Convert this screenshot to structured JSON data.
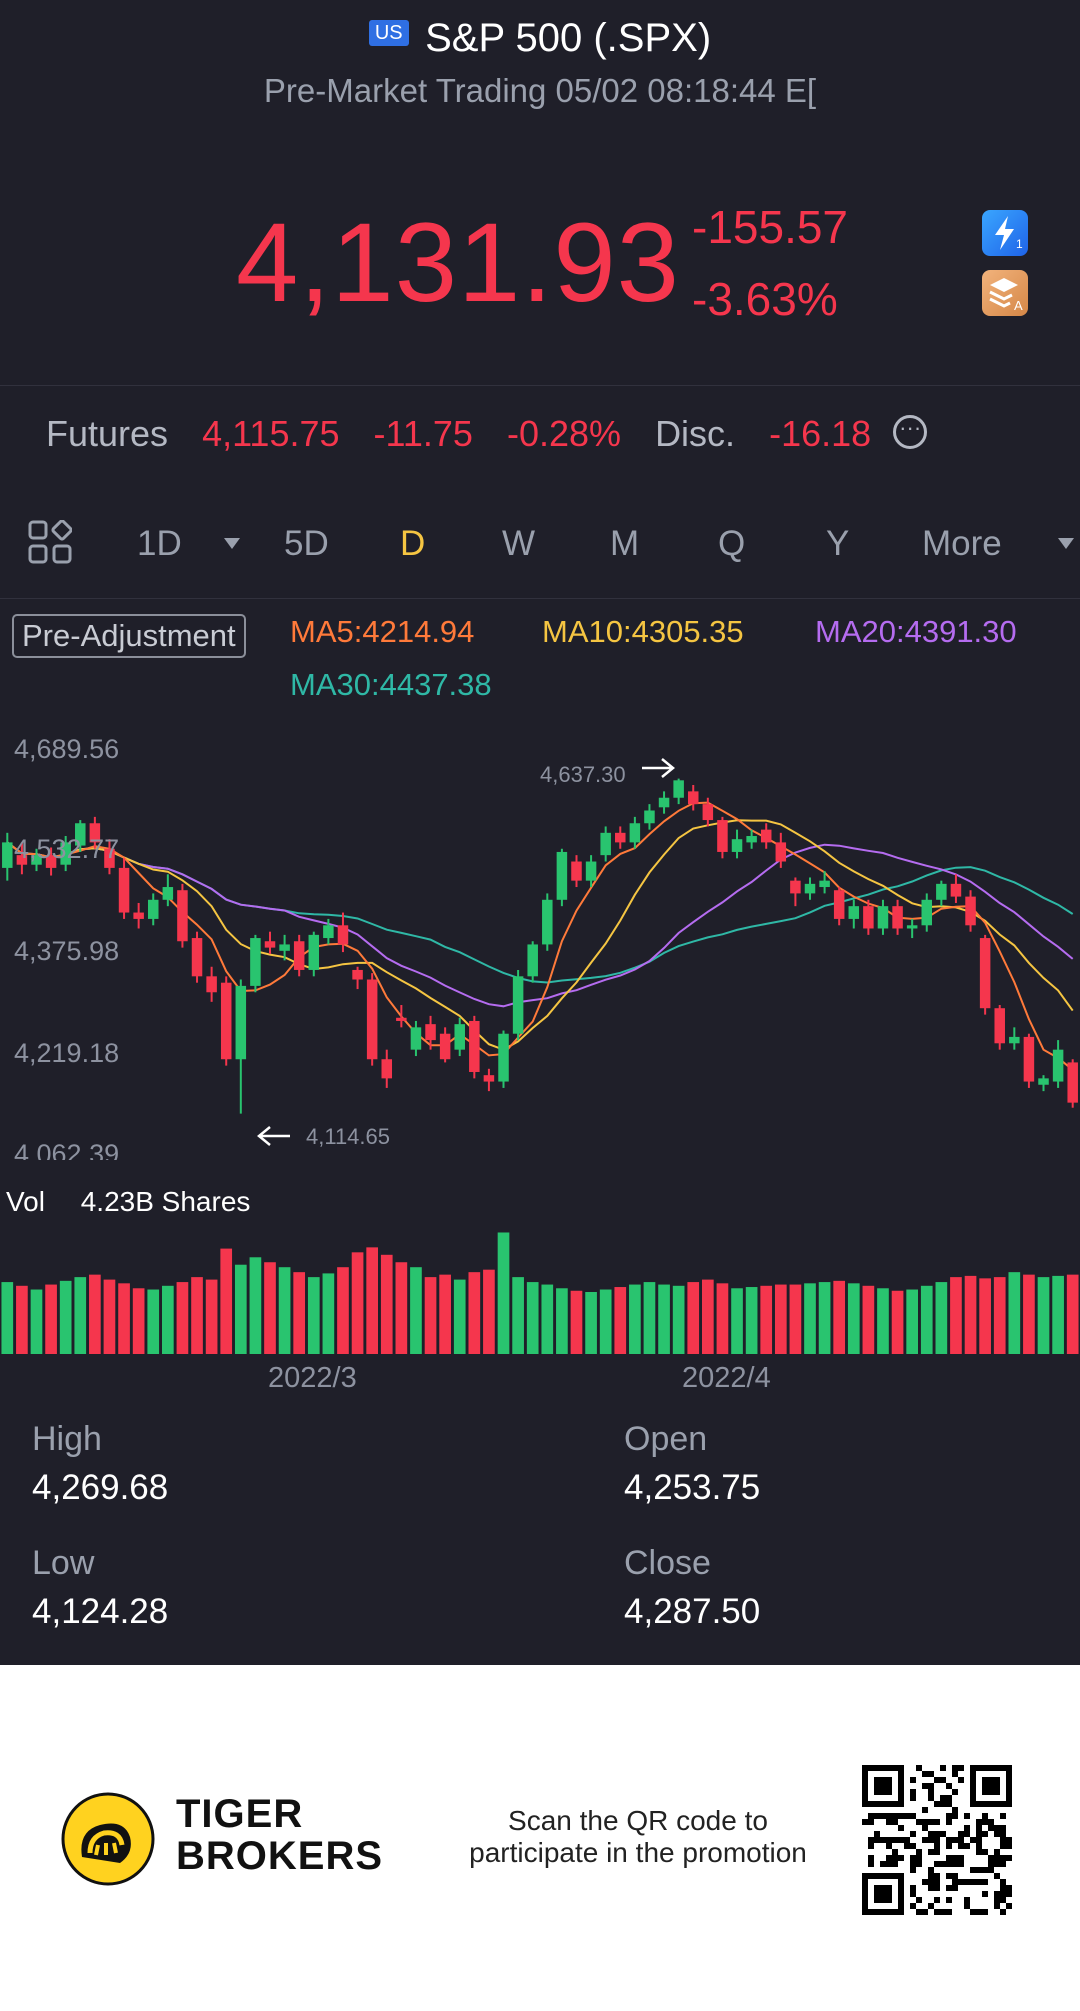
{
  "header": {
    "market_badge": "US",
    "title": "S&P 500 (.SPX)",
    "subtitle": "Pre-Market Trading 05/02 08:18:44 E[",
    "price": "4,131.93",
    "change": "-155.57",
    "change_pct": "-3.63%",
    "price_color": "#f5364d"
  },
  "futures": {
    "label": "Futures",
    "price": "4,115.75",
    "change": "-11.75",
    "change_pct": "-0.28%",
    "disc_label": "Disc.",
    "disc_value": "-16.18",
    "more_icon": "ellipsis-circle-icon"
  },
  "tabs": [
    {
      "label": "1D"
    },
    {
      "label": "5D"
    },
    {
      "label": "D",
      "active": true
    },
    {
      "label": "W"
    },
    {
      "label": "M"
    },
    {
      "label": "Q"
    },
    {
      "label": "Y"
    },
    {
      "label": "More"
    }
  ],
  "indicators": {
    "adjustment": "Pre-Adjustment",
    "ma5": "MA5:4214.94",
    "ma10": "MA10:4305.35",
    "ma20": "MA20:4391.30",
    "ma30": "MA30:4437.38",
    "colors": {
      "ma5": "#ff7a3a",
      "ma10": "#f5c542",
      "ma20": "#b56cf0",
      "ma30": "#2fb8a6",
      "up": "#29c46f",
      "down": "#f5364d"
    }
  },
  "chart_data": {
    "type": "candlestick",
    "y_ticks": [
      "4,689.56",
      "4,532.77",
      "4,375.98",
      "4,219.18",
      "4,062.39"
    ],
    "ylim": [
      4062.39,
      4689.56
    ],
    "high_marker": "4,637.30",
    "low_marker": "4,114.65",
    "x_ticks": [
      "2022/3",
      "2022/4"
    ],
    "candles": [
      [
        4500,
        4540,
        4480,
        4555
      ],
      [
        4520,
        4505,
        4490,
        4540
      ],
      [
        4505,
        4520,
        4495,
        4530
      ],
      [
        4520,
        4500,
        4488,
        4532
      ],
      [
        4505,
        4540,
        4495,
        4550
      ],
      [
        4535,
        4570,
        4525,
        4575
      ],
      [
        4570,
        4540,
        4530,
        4580
      ],
      [
        4530,
        4500,
        4490,
        4545
      ],
      [
        4500,
        4430,
        4420,
        4515
      ],
      [
        4430,
        4420,
        4405,
        4445
      ],
      [
        4420,
        4450,
        4410,
        4460
      ],
      [
        4450,
        4470,
        4440,
        4490
      ],
      [
        4465,
        4385,
        4375,
        4475
      ],
      [
        4390,
        4330,
        4320,
        4400
      ],
      [
        4330,
        4305,
        4290,
        4345
      ],
      [
        4320,
        4200,
        4190,
        4330
      ],
      [
        4200,
        4315,
        4114.65,
        4325
      ],
      [
        4315,
        4390,
        4305,
        4395
      ],
      [
        4385,
        4375,
        4365,
        4400
      ],
      [
        4370,
        4380,
        4355,
        4395
      ],
      [
        4385,
        4340,
        4330,
        4395
      ],
      [
        4340,
        4395,
        4330,
        4400
      ],
      [
        4390,
        4410,
        4380,
        4420
      ],
      [
        4410,
        4380,
        4368,
        4430
      ],
      [
        4340,
        4325,
        4310,
        4345
      ],
      [
        4325,
        4200,
        4190,
        4335
      ],
      [
        4200,
        4170,
        4155,
        4215
      ],
      [
        4265,
        4260,
        4250,
        4285
      ],
      [
        4215,
        4250,
        4205,
        4260
      ],
      [
        4255,
        4230,
        4215,
        4268
      ],
      [
        4240,
        4200,
        4195,
        4250
      ],
      [
        4215,
        4255,
        4205,
        4265
      ],
      [
        4260,
        4180,
        4170,
        4268
      ],
      [
        4175,
        4165,
        4150,
        4185
      ],
      [
        4165,
        4240,
        4155,
        4245
      ],
      [
        4240,
        4330,
        4230,
        4340
      ],
      [
        4330,
        4380,
        4320,
        4385
      ],
      [
        4380,
        4450,
        4370,
        4460
      ],
      [
        4450,
        4525,
        4440,
        4530
      ],
      [
        4510,
        4480,
        4470,
        4520
      ],
      [
        4480,
        4510,
        4470,
        4520
      ],
      [
        4520,
        4555,
        4510,
        4565
      ],
      [
        4555,
        4540,
        4530,
        4565
      ],
      [
        4540,
        4570,
        4530,
        4580
      ],
      [
        4570,
        4590,
        4560,
        4600
      ],
      [
        4595,
        4610,
        4585,
        4620
      ],
      [
        4610,
        4637.3,
        4600,
        4640
      ],
      [
        4620,
        4600,
        4590,
        4630
      ],
      [
        4600,
        4575,
        4565,
        4610
      ],
      [
        4575,
        4525,
        4515,
        4580
      ],
      [
        4525,
        4545,
        4515,
        4560
      ],
      [
        4540,
        4550,
        4530,
        4560
      ],
      [
        4560,
        4540,
        4530,
        4570
      ],
      [
        4540,
        4510,
        4500,
        4555
      ],
      [
        4480,
        4460,
        4440,
        4485
      ],
      [
        4460,
        4475,
        4450,
        4485
      ],
      [
        4470,
        4480,
        4460,
        4495
      ],
      [
        4465,
        4420,
        4410,
        4470
      ],
      [
        4420,
        4440,
        4405,
        4450
      ],
      [
        4440,
        4405,
        4395,
        4450
      ],
      [
        4405,
        4440,
        4395,
        4450
      ],
      [
        4440,
        4405,
        4395,
        4450
      ],
      [
        4405,
        4410,
        4390,
        4420
      ],
      [
        4410,
        4450,
        4400,
        4460
      ],
      [
        4450,
        4475,
        4440,
        4480
      ],
      [
        4475,
        4455,
        4445,
        4490
      ],
      [
        4455,
        4410,
        4400,
        4465
      ],
      [
        4390,
        4280,
        4270,
        4395
      ],
      [
        4280,
        4225,
        4215,
        4285
      ],
      [
        4225,
        4235,
        4215,
        4250
      ],
      [
        4235,
        4165,
        4155,
        4240
      ],
      [
        4160,
        4170,
        4150,
        4175
      ],
      [
        4165,
        4215,
        4155,
        4230
      ],
      [
        4195,
        4131.93,
        4124,
        4200
      ]
    ]
  },
  "volume": {
    "label": "Vol",
    "value": "4.23B Shares",
    "bars": [
      0.58,
      0.55,
      0.52,
      0.56,
      0.59,
      0.62,
      0.64,
      0.6,
      0.57,
      0.53,
      0.52,
      0.55,
      0.58,
      0.62,
      0.6,
      0.85,
      0.72,
      0.78,
      0.74,
      0.7,
      0.66,
      0.62,
      0.65,
      0.7,
      0.82,
      0.86,
      0.8,
      0.74,
      0.7,
      0.62,
      0.64,
      0.6,
      0.66,
      0.68,
      0.98,
      0.62,
      0.58,
      0.56,
      0.53,
      0.51,
      0.5,
      0.52,
      0.54,
      0.56,
      0.58,
      0.56,
      0.55,
      0.58,
      0.6,
      0.57,
      0.53,
      0.54,
      0.55,
      0.56,
      0.56,
      0.57,
      0.58,
      0.59,
      0.57,
      0.55,
      0.53,
      0.51,
      0.52,
      0.55,
      0.58,
      0.62,
      0.63,
      0.61,
      0.62,
      0.66,
      0.64,
      0.62,
      0.63,
      0.64
    ]
  },
  "stats": {
    "high_label": "High",
    "high": "4,269.68",
    "open_label": "Open",
    "open": "4,253.75",
    "low_label": "Low",
    "low": "4,124.28",
    "close_label": "Close",
    "close": "4,287.50"
  },
  "footer": {
    "brand_line1": "TIGER",
    "brand_line2": "BROKERS",
    "promo_line1": "Scan the QR code to",
    "promo_line2": "participate in the promotion",
    "brand_color": "#ffd21f"
  }
}
